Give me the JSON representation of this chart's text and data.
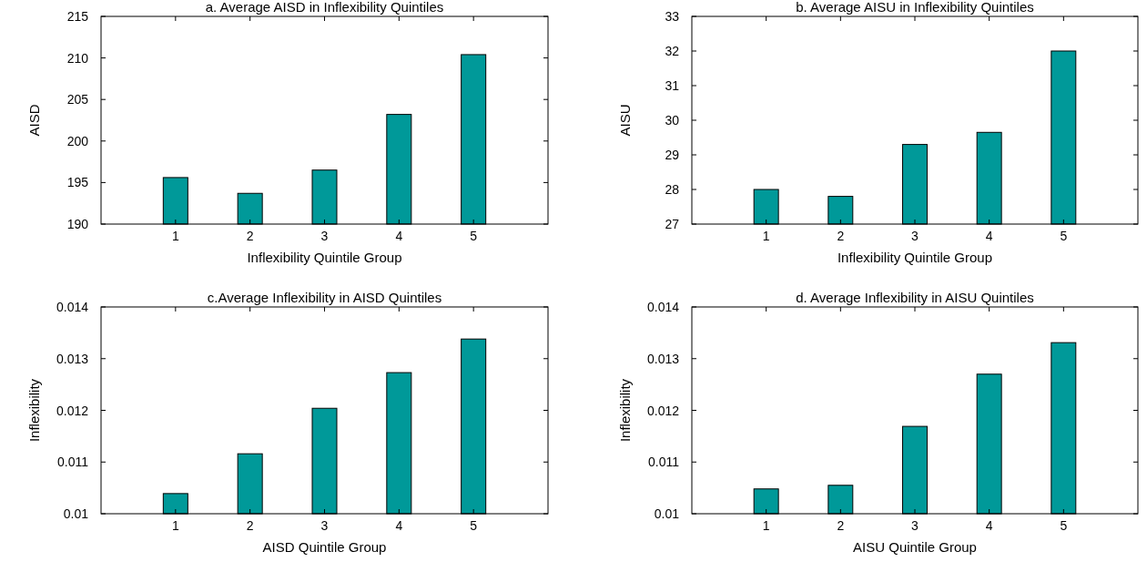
{
  "chart_data": [
    {
      "type": "bar",
      "title": "a. Average AISD in Inflexibility Quintiles",
      "xlabel": "Inflexibility Quintile Group",
      "ylabel": "AISD",
      "x": [
        1,
        2,
        3,
        4,
        5
      ],
      "xlim": [
        0,
        6
      ],
      "xticks": [
        1,
        2,
        3,
        4,
        5
      ],
      "ylim": [
        190,
        215
      ],
      "yticks": [
        190,
        195,
        200,
        205,
        210,
        215
      ],
      "color": "#009999",
      "values": [
        195.6,
        193.7,
        196.5,
        203.2,
        210.4
      ]
    },
    {
      "type": "bar",
      "title": "b. Average AISU in Inflexibility Quintiles",
      "xlabel": "Inflexibility Quintile Group",
      "ylabel": "AISU",
      "x": [
        1,
        2,
        3,
        4,
        5
      ],
      "xlim": [
        0,
        6
      ],
      "xticks": [
        1,
        2,
        3,
        4,
        5
      ],
      "ylim": [
        27,
        33
      ],
      "yticks": [
        27,
        28,
        29,
        30,
        31,
        32,
        33
      ],
      "color": "#009999",
      "values": [
        28.0,
        27.8,
        29.3,
        29.65,
        32.0
      ]
    },
    {
      "type": "bar",
      "title": "c.Average Inflexibility in AISD Quintiles",
      "xlabel": "AISD Quintile Group",
      "ylabel": "Inflexibility",
      "x": [
        1,
        2,
        3,
        4,
        5
      ],
      "xlim": [
        0,
        6
      ],
      "xticks": [
        1,
        2,
        3,
        4,
        5
      ],
      "ylim": [
        0.01,
        0.014
      ],
      "yticks": [
        0.01,
        0.011,
        0.012,
        0.013,
        0.014
      ],
      "color": "#009999",
      "values": [
        0.01039,
        0.01116,
        0.01204,
        0.01273,
        0.01338
      ]
    },
    {
      "type": "bar",
      "title": "d. Average Inflexibility in AISU Quintiles",
      "xlabel": "AISU Quintile Group",
      "ylabel": "Inflexibility",
      "x": [
        1,
        2,
        3,
        4,
        5
      ],
      "xlim": [
        0,
        6
      ],
      "xticks": [
        1,
        2,
        3,
        4,
        5
      ],
      "ylim": [
        0.01,
        0.014
      ],
      "yticks": [
        0.01,
        0.011,
        0.012,
        0.013,
        0.014
      ],
      "color": "#009999",
      "values": [
        0.01048,
        0.01055,
        0.01169,
        0.0127,
        0.01331
      ]
    }
  ]
}
